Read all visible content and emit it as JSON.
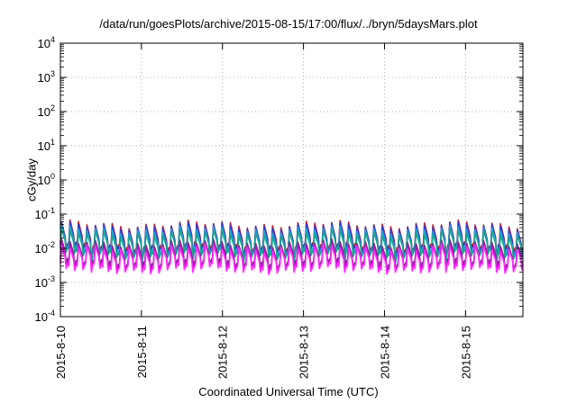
{
  "chart_data": {
    "type": "line",
    "title": "/data/run/goesPlots/archive/2015-08-15/17:00/flux/../bryn/5daysMars.plot",
    "xlabel": "Coordinated Universal Time (UTC)",
    "ylabel": "cGy/day",
    "y_scale": "log",
    "ylim": [
      0.0001,
      10000
    ],
    "y_ticks": [
      {
        "base": "10",
        "exp": "-4"
      },
      {
        "base": "10",
        "exp": "-3"
      },
      {
        "base": "10",
        "exp": "-2"
      },
      {
        "base": "10",
        "exp": "-1"
      },
      {
        "base": "10",
        "exp": "0"
      },
      {
        "base": "10",
        "exp": "1"
      },
      {
        "base": "10",
        "exp": "2"
      },
      {
        "base": "10",
        "exp": "3"
      },
      {
        "base": "10",
        "exp": "4"
      }
    ],
    "xlim": [
      "2015-08-10T00:00",
      "2015-08-15T17:00"
    ],
    "x_ticks": [
      "2015-8-10",
      "2015-8-11",
      "2015-8-12",
      "2015-8-13",
      "2015-8-14",
      "2015-8-15"
    ],
    "grid": true,
    "legend": "none",
    "cycle_hours": 2.5,
    "series": [
      {
        "color": "#d81f26",
        "peak": 0.05,
        "trough": 0.012,
        "min": 0.0045
      },
      {
        "color": "#2f3dd8",
        "peak": 0.045,
        "trough": 0.011,
        "min": 0.0045
      },
      {
        "color": "#12a8e0",
        "peak": 0.035,
        "trough": 0.009,
        "min": 0.004
      },
      {
        "color": "#19a88a",
        "peak": 0.028,
        "trough": 0.008,
        "min": 0.0035
      },
      {
        "color": "#7a2a8c",
        "peak": 0.014,
        "trough": 0.004,
        "min": 0.003
      },
      {
        "color": "#c10bc1",
        "peak": 0.012,
        "trough": 0.0035,
        "min": 0.0025
      },
      {
        "color": "#ff2bff",
        "peak": 0.01,
        "trough": 0.003,
        "min": 0.002
      }
    ]
  }
}
